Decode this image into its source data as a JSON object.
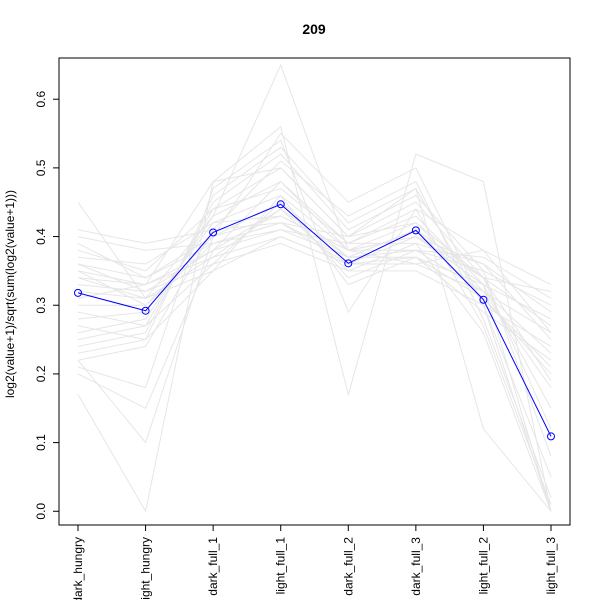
{
  "chart_data": {
    "type": "line",
    "title": "209",
    "xlabel": "",
    "ylabel": "log2(value+1)/sqrt(sum(log2(value+1)))",
    "categories": [
      "dark_hungry",
      "light_hungry",
      "dark_full_1",
      "light_full_1",
      "dark_full_2",
      "dark_full_3",
      "light_full_2",
      "light_full_3"
    ],
    "ylim": [
      -0.02,
      0.66
    ],
    "yticks": [
      0.0,
      0.1,
      0.2,
      0.3,
      0.4,
      0.5,
      0.6
    ],
    "ytick_labels": [
      "0.0",
      "0.1",
      "0.2",
      "0.3",
      "0.4",
      "0.5",
      "0.6"
    ],
    "grid": false,
    "legend": "none",
    "highlight_color": "#0000ff",
    "background_color": "#e6e6e6",
    "highlight_series": {
      "values": [
        0.318,
        0.292,
        0.406,
        0.447,
        0.361,
        0.409,
        0.308,
        0.109
      ]
    },
    "background_series": [
      {
        "values": [
          0.45,
          0.31,
          0.43,
          0.65,
          0.38,
          0.4,
          0.33,
          0.0
        ]
      },
      {
        "values": [
          0.17,
          0.0,
          0.48,
          0.56,
          0.17,
          0.52,
          0.48,
          0.0
        ]
      },
      {
        "values": [
          0.22,
          0.1,
          0.4,
          0.55,
          0.45,
          0.5,
          0.3,
          0.0
        ]
      },
      {
        "values": [
          0.38,
          0.35,
          0.44,
          0.47,
          0.39,
          0.44,
          0.38,
          0.33
        ]
      },
      {
        "values": [
          0.39,
          0.34,
          0.4,
          0.43,
          0.38,
          0.4,
          0.34,
          0.32
        ]
      },
      {
        "values": [
          0.36,
          0.34,
          0.39,
          0.42,
          0.37,
          0.38,
          0.35,
          0.3
        ]
      },
      {
        "values": [
          0.35,
          0.33,
          0.38,
          0.41,
          0.37,
          0.37,
          0.33,
          0.28
        ]
      },
      {
        "values": [
          0.34,
          0.33,
          0.37,
          0.4,
          0.36,
          0.36,
          0.32,
          0.26
        ]
      },
      {
        "values": [
          0.33,
          0.32,
          0.36,
          0.39,
          0.35,
          0.35,
          0.3,
          0.24
        ]
      },
      {
        "values": [
          0.32,
          0.31,
          0.35,
          0.4,
          0.36,
          0.37,
          0.29,
          0.22
        ]
      },
      {
        "values": [
          0.3,
          0.3,
          0.4,
          0.45,
          0.37,
          0.41,
          0.31,
          0.2
        ]
      },
      {
        "values": [
          0.28,
          0.29,
          0.42,
          0.46,
          0.38,
          0.42,
          0.32,
          0.18
        ]
      },
      {
        "values": [
          0.26,
          0.28,
          0.43,
          0.48,
          0.39,
          0.43,
          0.33,
          0.15
        ]
      },
      {
        "values": [
          0.25,
          0.27,
          0.44,
          0.5,
          0.4,
          0.45,
          0.34,
          0.12
        ]
      },
      {
        "values": [
          0.24,
          0.26,
          0.45,
          0.52,
          0.41,
          0.46,
          0.35,
          0.08
        ]
      },
      {
        "values": [
          0.23,
          0.25,
          0.46,
          0.53,
          0.42,
          0.47,
          0.3,
          0.05
        ]
      },
      {
        "values": [
          0.22,
          0.24,
          0.41,
          0.51,
          0.43,
          0.48,
          0.28,
          0.02
        ]
      },
      {
        "values": [
          0.21,
          0.18,
          0.47,
          0.54,
          0.29,
          0.44,
          0.27,
          0.01
        ]
      },
      {
        "values": [
          0.2,
          0.15,
          0.38,
          0.44,
          0.35,
          0.39,
          0.26,
          0.0
        ]
      },
      {
        "values": [
          0.37,
          0.36,
          0.42,
          0.43,
          0.38,
          0.38,
          0.37,
          0.31
        ]
      },
      {
        "values": [
          0.35,
          0.3,
          0.39,
          0.42,
          0.36,
          0.4,
          0.36,
          0.29
        ]
      },
      {
        "values": [
          0.34,
          0.31,
          0.37,
          0.44,
          0.37,
          0.41,
          0.34,
          0.27
        ]
      },
      {
        "values": [
          0.29,
          0.27,
          0.36,
          0.45,
          0.34,
          0.38,
          0.32,
          0.23
        ]
      },
      {
        "values": [
          0.27,
          0.25,
          0.35,
          0.46,
          0.33,
          0.37,
          0.31,
          0.21
        ]
      },
      {
        "values": [
          0.4,
          0.38,
          0.39,
          0.41,
          0.39,
          0.39,
          0.36,
          0.25
        ]
      },
      {
        "values": [
          0.31,
          0.33,
          0.48,
          0.5,
          0.4,
          0.47,
          0.12,
          0.0
        ]
      },
      {
        "values": [
          0.36,
          0.32,
          0.38,
          0.48,
          0.38,
          0.36,
          0.38,
          0.26
        ]
      },
      {
        "values": [
          0.41,
          0.39,
          0.41,
          0.42,
          0.4,
          0.42,
          0.34,
          0.19
        ]
      }
    ]
  }
}
